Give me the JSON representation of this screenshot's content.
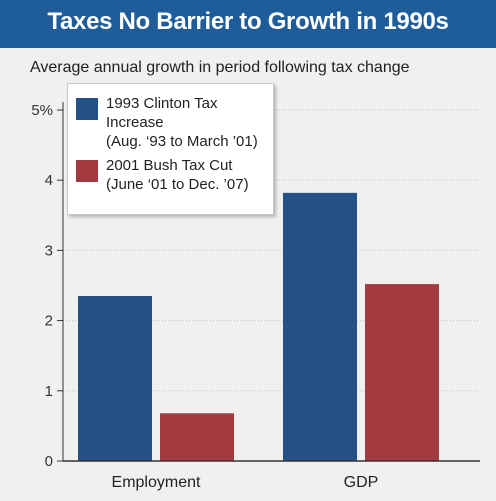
{
  "header": {
    "title": "Taxes No Barrier to Growth in 1990s"
  },
  "chart_data": {
    "type": "bar",
    "title": "Taxes No Barrier to Growth in 1990s",
    "subtitle": "Average annual growth in period following tax change",
    "categories": [
      "Employment",
      "GDP"
    ],
    "series": [
      {
        "name": "1993 Clinton Tax Increase",
        "name_line2": "(Aug. ‘93 to March ’01)",
        "values": [
          2.35,
          3.82
        ],
        "color": "#245287"
      },
      {
        "name": "2001 Bush Tax Cut",
        "name_line2": "(June ‘01 to Dec. ’07)",
        "values": [
          0.68,
          2.52
        ],
        "color": "#a33a40"
      }
    ],
    "ylim": [
      0,
      5
    ],
    "yticks": [
      0,
      1,
      2,
      3,
      4,
      5
    ],
    "ytick_labels": [
      "0",
      "1",
      "2",
      "3",
      "4",
      "5%"
    ],
    "grid": true,
    "legend": "top-left"
  }
}
